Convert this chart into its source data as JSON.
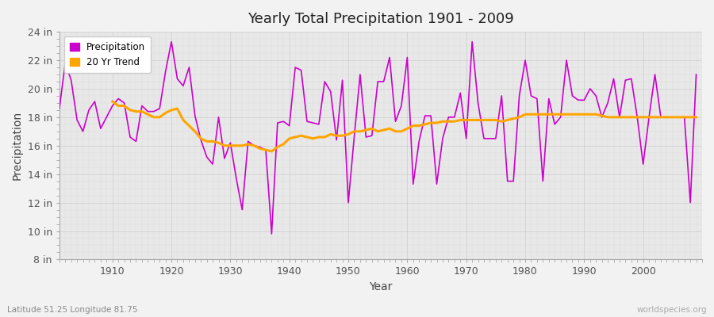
{
  "title": "Yearly Total Precipitation 1901 - 2009",
  "xlabel": "Year",
  "ylabel": "Precipitation",
  "lat_lon_label": "Latitude 51.25 Longitude 81.75",
  "watermark": "worldspecies.org",
  "years": [
    1901,
    1902,
    1903,
    1904,
    1905,
    1906,
    1907,
    1908,
    1909,
    1910,
    1911,
    1912,
    1913,
    1914,
    1915,
    1916,
    1917,
    1918,
    1919,
    1920,
    1921,
    1922,
    1923,
    1924,
    1925,
    1926,
    1927,
    1928,
    1929,
    1930,
    1931,
    1932,
    1933,
    1934,
    1935,
    1936,
    1937,
    1938,
    1939,
    1940,
    1941,
    1942,
    1943,
    1944,
    1945,
    1946,
    1947,
    1948,
    1949,
    1950,
    1951,
    1952,
    1953,
    1954,
    1955,
    1956,
    1957,
    1958,
    1959,
    1960,
    1961,
    1962,
    1963,
    1964,
    1965,
    1966,
    1967,
    1968,
    1969,
    1970,
    1971,
    1972,
    1973,
    1974,
    1975,
    1976,
    1977,
    1978,
    1979,
    1980,
    1981,
    1982,
    1983,
    1984,
    1985,
    1986,
    1987,
    1988,
    1989,
    1990,
    1991,
    1992,
    1993,
    1994,
    1995,
    1996,
    1997,
    1998,
    1999,
    2000,
    2001,
    2002,
    2003,
    2004,
    2005,
    2006,
    2007,
    2008,
    2009
  ],
  "precip_in": [
    18.6,
    21.8,
    20.6,
    17.8,
    17.0,
    18.5,
    19.1,
    17.2,
    18.0,
    18.8,
    19.3,
    19.0,
    16.6,
    16.3,
    18.8,
    18.4,
    18.4,
    18.6,
    21.2,
    23.3,
    20.7,
    20.2,
    21.5,
    18.1,
    16.4,
    15.2,
    14.7,
    18.0,
    15.1,
    16.2,
    13.7,
    11.5,
    16.3,
    16.0,
    15.9,
    15.7,
    9.8,
    17.6,
    17.7,
    17.4,
    21.5,
    21.3,
    17.7,
    17.6,
    17.5,
    20.5,
    19.8,
    16.4,
    20.6,
    12.0,
    16.6,
    21.0,
    16.6,
    16.7,
    20.5,
    20.5,
    22.2,
    17.7,
    18.8,
    22.2,
    13.3,
    16.3,
    18.1,
    18.1,
    13.3,
    16.5,
    18.0,
    18.0,
    19.7,
    16.5,
    23.3,
    19.0,
    16.5,
    16.5,
    16.5,
    19.5,
    13.5,
    13.5,
    19.5,
    22.0,
    19.5,
    19.3,
    13.5,
    19.3,
    17.5,
    18.0,
    22.0,
    19.5,
    19.2,
    19.2,
    20.0,
    19.5,
    18.0,
    19.0,
    20.7,
    18.0,
    20.6,
    20.7,
    18.0,
    14.7,
    18.0,
    21.0,
    18.0,
    18.0,
    18.0,
    18.0,
    18.0,
    12.0,
    21.0
  ],
  "trend_years": [
    1910,
    1911,
    1912,
    1913,
    1914,
    1915,
    1916,
    1917,
    1918,
    1919,
    1920,
    1921,
    1922,
    1923,
    1924,
    1925,
    1926,
    1927,
    1928,
    1929,
    1930,
    1931,
    1932,
    1933,
    1934,
    1935,
    1936,
    1937,
    1938,
    1939,
    1940,
    1941,
    1942,
    1943,
    1944,
    1945,
    1946,
    1947,
    1948,
    1949,
    1950,
    1951,
    1952,
    1953,
    1954,
    1955,
    1956,
    1957,
    1958,
    1959,
    1960,
    1961,
    1962,
    1963,
    1964,
    1965,
    1966,
    1967,
    1968,
    1969,
    1970,
    1971,
    1972,
    1973,
    1974,
    1975,
    1976,
    1977,
    1978,
    1979,
    1980,
    1981,
    1982,
    1983,
    1984,
    1985,
    1986,
    1987,
    1988,
    1989,
    1990,
    1991,
    1992,
    1993,
    1994,
    1995,
    1996,
    1997,
    1998,
    1999,
    2000,
    2001,
    2002,
    2003,
    2004,
    2005,
    2006,
    2007,
    2008,
    2009
  ],
  "trend_in": [
    19.1,
    18.8,
    18.8,
    18.5,
    18.4,
    18.4,
    18.2,
    18.0,
    18.0,
    18.3,
    18.5,
    18.6,
    17.8,
    17.4,
    17.0,
    16.5,
    16.3,
    16.3,
    16.2,
    16.0,
    16.0,
    16.0,
    16.0,
    16.1,
    16.0,
    15.8,
    15.7,
    15.6,
    15.9,
    16.1,
    16.5,
    16.6,
    16.7,
    16.6,
    16.5,
    16.6,
    16.6,
    16.8,
    16.7,
    16.7,
    16.8,
    17.0,
    17.0,
    17.1,
    17.2,
    17.0,
    17.1,
    17.2,
    17.0,
    17.0,
    17.2,
    17.4,
    17.4,
    17.5,
    17.6,
    17.6,
    17.7,
    17.7,
    17.7,
    17.8,
    17.8,
    17.8,
    17.8,
    17.8,
    17.8,
    17.8,
    17.7,
    17.8,
    17.9,
    18.0,
    18.2,
    18.2,
    18.2,
    18.2,
    18.2,
    18.2,
    18.2,
    18.2,
    18.2,
    18.2,
    18.2,
    18.2,
    18.2,
    18.1,
    18.0,
    18.0,
    18.0,
    18.0,
    18.0,
    18.0,
    18.0,
    18.0,
    18.0,
    18.0,
    18.0,
    18.0,
    18.0,
    18.0,
    18.0,
    18.0
  ],
  "precip_color": "#cc00cc",
  "trend_color": "#FFA500",
  "outer_bg": "#f2f2f2",
  "plot_bg": "#e8e8e8",
  "ylim_in": [
    8,
    24
  ],
  "yticks_in": [
    8,
    10,
    12,
    14,
    16,
    18,
    20,
    22,
    24
  ],
  "xlim": [
    1901,
    2010
  ],
  "xticks": [
    1910,
    1920,
    1930,
    1940,
    1950,
    1960,
    1970,
    1980,
    1990,
    2000
  ]
}
